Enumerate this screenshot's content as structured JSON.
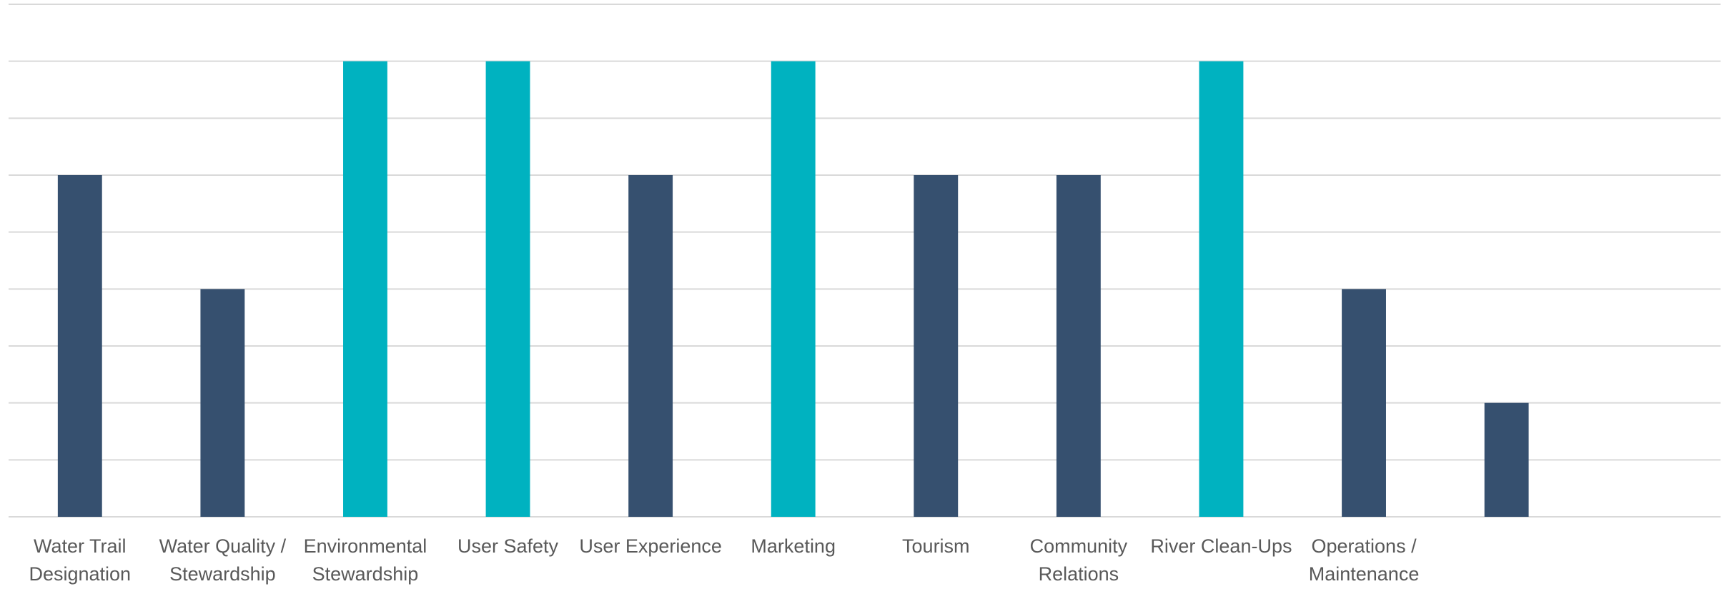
{
  "chart_data": {
    "type": "bar",
    "categories": [
      "Water Trail Designation",
      "Water Quality / Stewardship",
      "Environmental Stewardship",
      "User Safety",
      "User Experience",
      "Marketing",
      "Tourism",
      "Community Relations",
      "River Clean-Ups",
      "Operations / Maintenance",
      null,
      null
    ],
    "values": [
      6,
      4,
      8,
      8,
      6,
      8,
      6,
      6,
      8,
      4,
      2,
      null
    ],
    "colors": [
      "#36506f",
      "#36506f",
      "#00b2c0",
      "#00b2c0",
      "#36506f",
      "#00b2c0",
      "#36506f",
      "#36506f",
      "#00b2c0",
      "#36506f",
      "#36506f",
      null
    ],
    "ylim": [
      0,
      9
    ],
    "yticks": [
      0,
      1,
      2,
      3,
      4,
      5,
      6,
      7,
      8,
      9
    ],
    "grid": true
  }
}
